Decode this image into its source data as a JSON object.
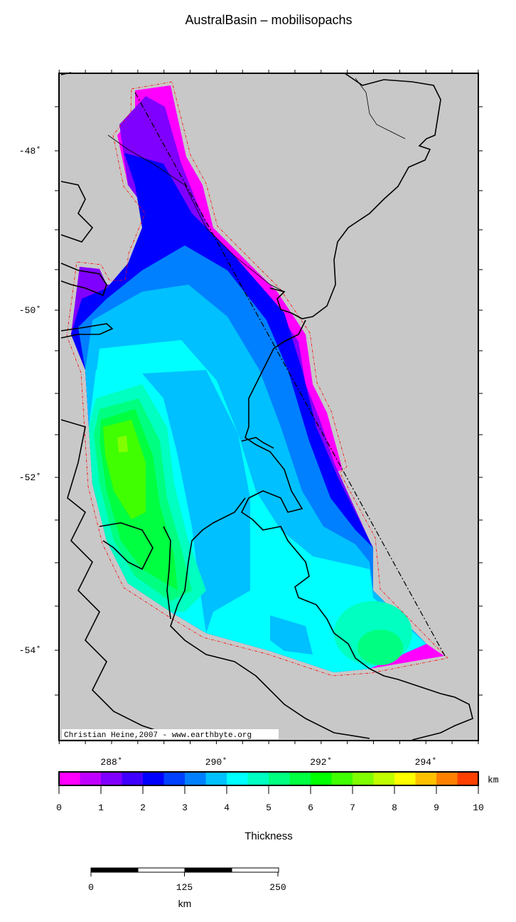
{
  "title": "AustralBasin – mobilisopachs",
  "credit": "Christian Heine,2007 - www.earthbyte.org",
  "map": {
    "lon_labels": [
      "288˚",
      "290˚",
      "292˚",
      "294˚"
    ],
    "lon_values": [
      288,
      290,
      292,
      294
    ],
    "lat_labels": [
      "-48˚",
      "-50˚",
      "-52˚",
      "-54˚"
    ],
    "lat_values": [
      -48,
      -50,
      -52,
      -54
    ],
    "lon_range": [
      287,
      295
    ],
    "lat_range": [
      -55,
      -47
    ],
    "land_color": "#c8c8c8",
    "basin_outline_color": "#ff0000"
  },
  "colorbar": {
    "label": "Thickness",
    "unit": "km",
    "range": [
      0,
      10
    ],
    "tick_labels": [
      "0",
      "1",
      "2",
      "3",
      "4",
      "5",
      "6",
      "7",
      "8",
      "9",
      "10"
    ],
    "colors": [
      "#ff00ff",
      "#c000ff",
      "#8000ff",
      "#4000ff",
      "#0000ff",
      "#0040ff",
      "#0080ff",
      "#00c0ff",
      "#00ffff",
      "#00ffc0",
      "#00ff80",
      "#00ff40",
      "#00ff00",
      "#40ff00",
      "#80ff00",
      "#c0ff00",
      "#ffff00",
      "#ffc000",
      "#ff8000",
      "#ff4000"
    ]
  },
  "scalebar": {
    "tick_labels": [
      "0",
      "125",
      "250"
    ],
    "unit": "km"
  }
}
